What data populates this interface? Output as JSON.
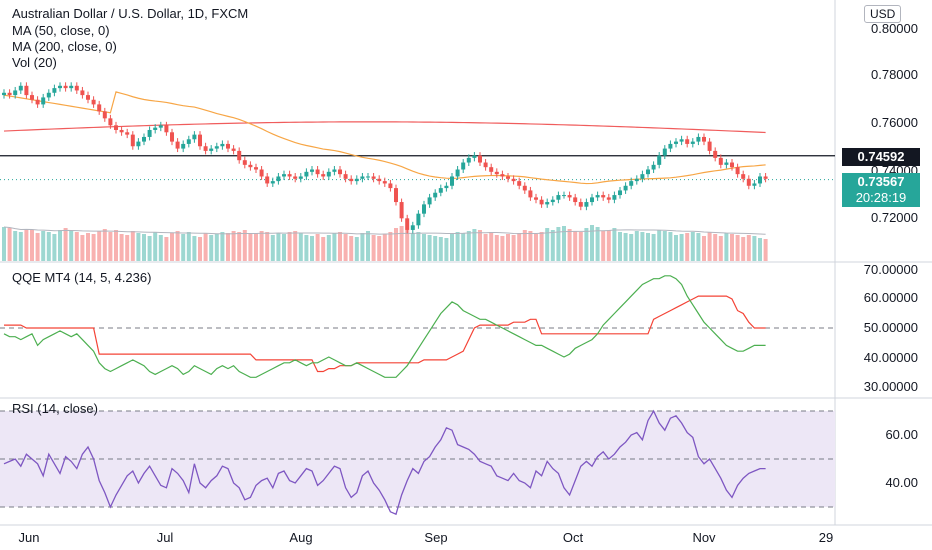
{
  "header": {
    "symbol_title": "Australian Dollar / U.S. Dollar, 1D, FXCM",
    "ma50_label": "MA (50, close, 0)",
    "ma200_label": "MA (200, close, 0)",
    "vol_label": "Vol (20)",
    "currency": "USD"
  },
  "price_panel": {
    "y_ticks": [
      "0.80000",
      "0.78000",
      "0.76000",
      "0.74000",
      "0.72000"
    ],
    "hline_value": "0.74592",
    "last_price": "0.73567",
    "countdown": "20:28:19"
  },
  "qqe_panel": {
    "label": "QQE MT4 (14, 5, 4.236)",
    "y_ticks": [
      "70.00000",
      "60.00000",
      "50.00000",
      "40.00000",
      "30.00000"
    ]
  },
  "rsi_panel": {
    "label": "RSI (14, close)",
    "y_ticks": [
      "60.00",
      "40.00"
    ]
  },
  "x_axis": {
    "labels": [
      "Jun",
      "Jul",
      "Aug",
      "Sep",
      "Oct",
      "Nov",
      "29"
    ]
  },
  "colors": {
    "up": "#26a69a",
    "down": "#ef5350",
    "ma50": "#f7a646",
    "ma200": "#f05c5c",
    "rsi": "#7e57c2",
    "rsi_band": "#ede7f6",
    "qqe_fast": "#4caf50",
    "qqe_slow": "#f44336"
  },
  "chart_data": [
    {
      "type": "candlestick",
      "title": "Australian Dollar / U.S. Dollar, 1D, FXCM",
      "ylim": [
        0.705,
        0.81
      ],
      "hline": 0.74592,
      "last": 0.73567,
      "close": [
        0.773,
        0.772,
        0.774,
        0.776,
        0.772,
        0.77,
        0.768,
        0.771,
        0.773,
        0.775,
        0.776,
        0.775,
        0.776,
        0.774,
        0.772,
        0.77,
        0.768,
        0.765,
        0.762,
        0.759,
        0.757,
        0.756,
        0.755,
        0.75,
        0.752,
        0.754,
        0.757,
        0.758,
        0.759,
        0.756,
        0.752,
        0.749,
        0.751,
        0.753,
        0.755,
        0.75,
        0.748,
        0.749,
        0.75,
        0.751,
        0.749,
        0.748,
        0.744,
        0.742,
        0.741,
        0.74,
        0.737,
        0.734,
        0.735,
        0.737,
        0.738,
        0.737,
        0.736,
        0.737,
        0.739,
        0.74,
        0.738,
        0.737,
        0.739,
        0.74,
        0.738,
        0.736,
        0.735,
        0.736,
        0.737,
        0.737,
        0.736,
        0.735,
        0.734,
        0.732,
        0.726,
        0.719,
        0.714,
        0.716,
        0.721,
        0.725,
        0.728,
        0.73,
        0.732,
        0.733,
        0.737,
        0.74,
        0.743,
        0.745,
        0.746,
        0.743,
        0.741,
        0.739,
        0.738,
        0.737,
        0.736,
        0.735,
        0.733,
        0.731,
        0.728,
        0.727,
        0.725,
        0.726,
        0.727,
        0.729,
        0.729,
        0.728,
        0.726,
        0.724,
        0.726,
        0.728,
        0.729,
        0.728,
        0.727,
        0.729,
        0.731,
        0.733,
        0.735,
        0.736,
        0.738,
        0.74,
        0.742,
        0.746,
        0.749,
        0.751,
        0.752,
        0.753,
        0.751,
        0.752,
        0.754,
        0.752,
        0.748,
        0.745,
        0.742,
        0.743,
        0.741,
        0.738,
        0.736,
        0.733,
        0.734,
        0.737,
        0.736
      ],
      "volume": [
        34,
        33,
        30,
        29,
        32,
        31,
        28,
        30,
        29,
        27,
        31,
        33,
        30,
        29,
        26,
        28,
        27,
        30,
        32,
        29,
        31,
        27,
        26,
        30,
        28,
        27,
        25,
        29,
        26,
        24,
        28,
        30,
        27,
        29,
        25,
        24,
        28,
        26,
        27,
        29,
        28,
        30,
        29,
        31,
        27,
        28,
        30,
        29,
        26,
        28,
        27,
        29,
        30,
        28,
        26,
        25,
        27,
        24,
        26,
        28,
        29,
        27,
        25,
        24,
        28,
        30,
        26,
        25,
        27,
        29,
        33,
        35,
        31,
        28,
        29,
        27,
        26,
        25,
        24,
        23,
        27,
        29,
        28,
        30,
        32,
        31,
        27,
        29,
        26,
        25,
        27,
        26,
        28,
        31,
        30,
        27,
        29,
        33,
        31,
        34,
        35,
        32,
        30,
        29,
        33,
        36,
        34,
        30,
        31,
        33,
        29,
        28,
        27,
        30,
        29,
        28,
        27,
        31,
        30,
        29,
        26,
        27,
        28,
        29,
        28,
        25,
        29,
        27,
        25,
        28,
        27,
        26,
        24,
        26,
        25,
        23,
        22
      ],
      "series": [
        {
          "name": "MA (50, close, 0)"
        },
        {
          "name": "MA (200, close, 0)"
        },
        {
          "name": "Vol (20)"
        }
      ]
    },
    {
      "type": "line",
      "title": "QQE MT4 (14, 5, 4.236)",
      "ylim": [
        27,
        72
      ],
      "hline": 50,
      "fast": [
        48,
        47,
        47,
        46,
        47,
        48,
        44,
        46,
        47,
        48,
        49,
        48,
        47,
        48,
        46,
        44,
        42,
        38,
        36,
        35,
        36,
        37,
        38,
        39,
        38,
        37,
        35,
        34,
        35,
        36,
        37,
        36,
        34,
        35,
        37,
        36,
        35,
        34,
        36,
        37,
        36,
        37,
        35,
        34,
        33,
        33,
        34,
        35,
        36,
        37,
        38,
        38,
        39,
        38,
        37,
        38,
        38,
        39,
        40,
        39,
        38,
        37,
        37,
        38,
        37,
        36,
        35,
        34,
        33,
        33,
        33,
        35,
        37,
        40,
        43,
        46,
        49,
        52,
        55,
        57,
        59,
        58,
        56,
        55,
        54,
        53,
        53,
        52,
        51,
        50,
        49,
        48,
        47,
        46,
        45,
        44,
        44,
        43,
        42,
        41,
        40,
        41,
        43,
        44,
        45,
        46,
        48,
        51,
        53,
        55,
        57,
        59,
        61,
        63,
        65,
        66,
        67,
        67,
        68,
        68,
        67,
        65,
        61,
        58,
        55,
        52,
        50,
        48,
        46,
        44,
        43,
        42,
        42,
        43,
        44,
        44,
        44
      ],
      "slow": [
        51,
        51,
        51,
        51,
        50,
        50,
        50,
        50,
        50,
        50,
        50,
        50,
        50,
        50,
        50,
        50,
        50,
        41,
        41,
        41,
        41,
        41,
        41,
        41,
        41,
        41,
        41,
        41,
        41,
        41,
        41,
        41,
        41,
        41,
        41,
        41,
        41,
        41,
        41,
        41,
        41,
        41,
        41,
        41,
        41,
        39,
        39,
        39,
        39,
        39,
        39,
        39,
        39,
        39,
        39,
        39,
        35,
        35,
        36,
        36,
        37,
        37,
        37,
        38,
        38,
        38,
        38,
        38,
        38,
        38,
        38,
        38,
        38,
        38,
        38,
        39,
        39,
        39,
        39,
        39,
        40,
        41,
        42,
        46,
        50,
        51,
        51,
        51,
        51,
        51,
        51,
        52,
        52,
        52,
        53,
        53,
        48,
        48,
        48,
        48,
        48,
        48,
        48,
        48,
        48,
        48,
        48,
        48,
        48,
        48,
        48,
        48,
        48,
        48,
        48,
        48,
        53,
        54,
        55,
        56,
        57,
        58,
        59,
        60,
        61,
        61,
        61,
        61,
        61,
        61,
        60,
        56,
        55,
        52,
        50,
        50,
        50
      ],
      "series": [
        {
          "name": "QQE MT4 (14, 5, 4.236)"
        }
      ]
    },
    {
      "type": "line",
      "title": "RSI (14, close)",
      "ylim": [
        21,
        79
      ],
      "band": [
        30,
        70
      ],
      "middle": 50,
      "values": [
        48,
        49,
        50,
        47,
        52,
        50,
        48,
        43,
        52,
        48,
        44,
        51,
        49,
        46,
        52,
        55,
        50,
        41,
        36,
        30,
        35,
        39,
        43,
        45,
        40,
        44,
        47,
        43,
        39,
        38,
        46,
        44,
        41,
        36,
        48,
        40,
        38,
        41,
        43,
        47,
        46,
        40,
        38,
        33,
        34,
        39,
        41,
        42,
        38,
        44,
        45,
        41,
        40,
        43,
        46,
        45,
        39,
        41,
        44,
        47,
        46,
        38,
        34,
        36,
        43,
        45,
        40,
        37,
        33,
        28,
        27,
        35,
        41,
        46,
        44,
        49,
        51,
        55,
        58,
        63,
        62,
        56,
        55,
        54,
        52,
        49,
        48,
        47,
        43,
        42,
        41,
        44,
        41,
        40,
        38,
        45,
        43,
        49,
        46,
        44,
        38,
        35,
        41,
        47,
        49,
        47,
        51,
        53,
        50,
        52,
        55,
        57,
        60,
        61,
        58,
        66,
        70,
        65,
        62,
        67,
        68,
        65,
        61,
        59,
        51,
        48,
        50,
        46,
        42,
        37,
        34,
        39,
        42,
        44,
        45,
        46,
        46
      ],
      "series": [
        {
          "name": "RSI (14, close)"
        }
      ]
    }
  ]
}
